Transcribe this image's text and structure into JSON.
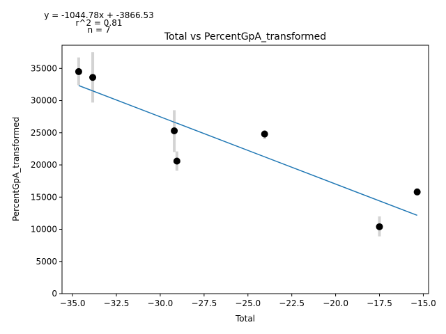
{
  "chart_data": {
    "type": "scatter",
    "title": "Total vs PercentGpA_transformed",
    "xlabel": "Total",
    "ylabel": "PercentGpA_transformed",
    "xlim": [
      -35.6,
      -14.7
    ],
    "ylim": [
      0,
      38600
    ],
    "grid": false,
    "x_ticks": [
      -35.0,
      -32.5,
      -30.0,
      -27.5,
      -25.0,
      -22.5,
      -20.0,
      -17.5,
      -15.0
    ],
    "x_tick_labels": [
      "−35.0",
      "−32.5",
      "−30.0",
      "−27.5",
      "−25.0",
      "−22.5",
      "−20.0",
      "−17.5",
      "−15.0"
    ],
    "y_ticks": [
      0,
      5000,
      10000,
      15000,
      20000,
      25000,
      30000,
      35000
    ],
    "y_tick_labels": [
      "0",
      "5000",
      "10000",
      "15000",
      "20000",
      "25000",
      "30000",
      "35000"
    ],
    "points": [
      {
        "x": -34.65,
        "y": 34500,
        "err_low": 32400,
        "err_high": 36700
      },
      {
        "x": -33.85,
        "y": 33600,
        "err_low": 29700,
        "err_high": 37500
      },
      {
        "x": -29.2,
        "y": 25300,
        "err_low": 22000,
        "err_high": 28500
      },
      {
        "x": -29.05,
        "y": 20600,
        "err_low": 19100,
        "err_high": 22100
      },
      {
        "x": -24.05,
        "y": 24800,
        "err_low": 24000,
        "err_high": 25400
      },
      {
        "x": -17.5,
        "y": 10400,
        "err_low": 8900,
        "err_high": 12000
      },
      {
        "x": -15.35,
        "y": 15800,
        "err_low": 15300,
        "err_high": 16400
      }
    ],
    "fit": {
      "slope": -1044.78,
      "intercept": -3866.53,
      "x_start": -34.65,
      "x_end": -15.35
    },
    "colors": {
      "points": "#000000",
      "error_bars": "#d3d3d3",
      "fit_line": "#1f77b4"
    },
    "annotations": [
      "y = -1044.78x + -3866.53",
      "r^2 = 0.81",
      "n = 7"
    ]
  }
}
